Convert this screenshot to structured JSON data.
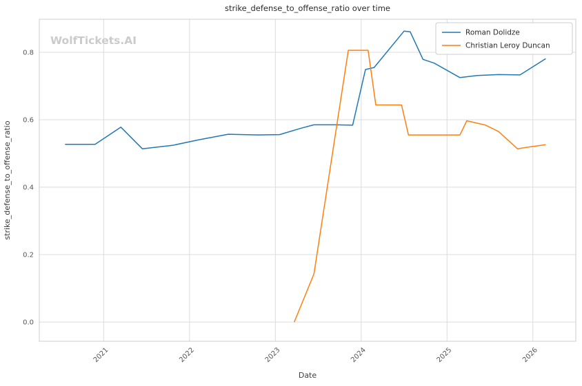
{
  "watermark": "WolfTickets.AI",
  "chart_data": {
    "type": "line",
    "title": "strike_defense_to_offense_ratio over time",
    "xlabel": "Date",
    "ylabel": "strike_defense_to_offense_ratio",
    "grid": true,
    "legend_position": "upper right",
    "xlim": [
      2020.25,
      2026.5
    ],
    "ylim": [
      -0.057,
      0.898
    ],
    "x_ticks": [
      2021,
      2022,
      2023,
      2024,
      2025,
      2026
    ],
    "x_tick_labels": [
      "2021",
      "2022",
      "2023",
      "2024",
      "2025",
      "2026"
    ],
    "y_ticks": [
      0.0,
      0.2,
      0.4,
      0.6,
      0.8
    ],
    "y_tick_labels": [
      "0.0",
      "0.2",
      "0.4",
      "0.6",
      "0.8"
    ],
    "series": [
      {
        "name": "Roman Dolidze",
        "color": "#1f77b4",
        "points": [
          [
            2020.55,
            0.527
          ],
          [
            2020.9,
            0.527
          ],
          [
            2021.2,
            0.578
          ],
          [
            2021.45,
            0.514
          ],
          [
            2021.8,
            0.524
          ],
          [
            2022.1,
            0.54
          ],
          [
            2022.45,
            0.557
          ],
          [
            2022.8,
            0.555
          ],
          [
            2023.05,
            0.556
          ],
          [
            2023.3,
            0.575
          ],
          [
            2023.45,
            0.585
          ],
          [
            2023.7,
            0.585
          ],
          [
            2023.9,
            0.584
          ],
          [
            2024.05,
            0.749
          ],
          [
            2024.15,
            0.755
          ],
          [
            2024.5,
            0.863
          ],
          [
            2024.57,
            0.861
          ],
          [
            2024.72,
            0.779
          ],
          [
            2024.85,
            0.768
          ],
          [
            2025.15,
            0.725
          ],
          [
            2025.35,
            0.731
          ],
          [
            2025.6,
            0.734
          ],
          [
            2025.85,
            0.733
          ],
          [
            2026.15,
            0.781
          ]
        ]
      },
      {
        "name": "Christian Leroy Duncan",
        "color": "#ff7f0e",
        "points": [
          [
            2023.22,
            0.0
          ],
          [
            2023.45,
            0.143
          ],
          [
            2023.85,
            0.806
          ],
          [
            2024.08,
            0.806
          ],
          [
            2024.17,
            0.644
          ],
          [
            2024.47,
            0.644
          ],
          [
            2024.55,
            0.555
          ],
          [
            2024.8,
            0.555
          ],
          [
            2025.15,
            0.555
          ],
          [
            2025.23,
            0.597
          ],
          [
            2025.45,
            0.584
          ],
          [
            2025.6,
            0.565
          ],
          [
            2025.82,
            0.514
          ],
          [
            2025.95,
            0.519
          ],
          [
            2026.15,
            0.526
          ]
        ]
      }
    ]
  }
}
